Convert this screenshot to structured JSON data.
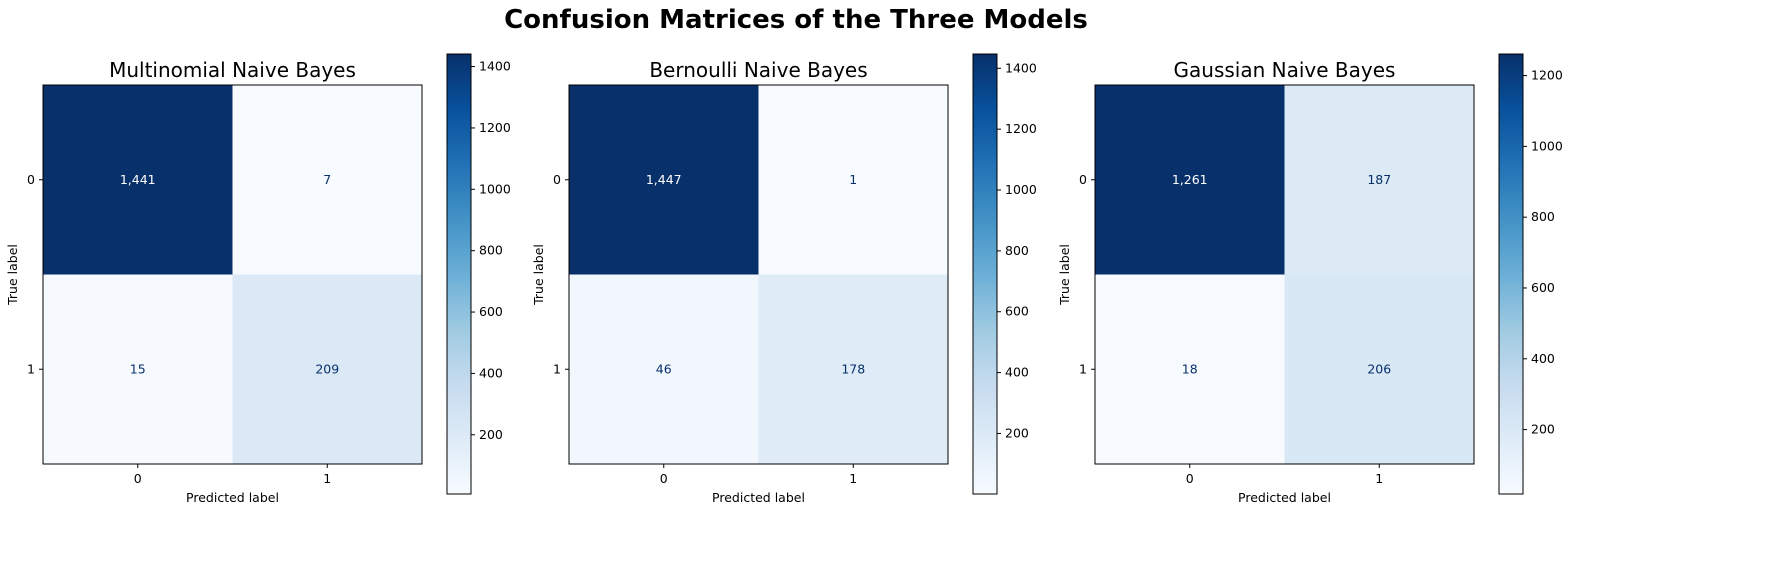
{
  "figure": {
    "title": "Confusion Matrices of the Three Models"
  },
  "chart_data": [
    {
      "type": "heatmap",
      "title": "Multinomial Naive Bayes",
      "xlabel": "Predicted label",
      "ylabel": "True label",
      "x_tick_labels": [
        "0",
        "1"
      ],
      "y_tick_labels": [
        "0",
        "1"
      ],
      "matrix": [
        [
          1441,
          7
        ],
        [
          15,
          209
        ]
      ],
      "cell_labels": [
        [
          "1,441",
          "7"
        ],
        [
          "15",
          "209"
        ]
      ],
      "colormap": "Blues",
      "colorbar": {
        "range": [
          7,
          1441
        ],
        "ticks": [
          200,
          400,
          600,
          800,
          1000,
          1200,
          1400
        ]
      }
    },
    {
      "type": "heatmap",
      "title": "Bernoulli Naive Bayes",
      "xlabel": "Predicted label",
      "ylabel": "True label",
      "x_tick_labels": [
        "0",
        "1"
      ],
      "y_tick_labels": [
        "0",
        "1"
      ],
      "matrix": [
        [
          1447,
          1
        ],
        [
          46,
          178
        ]
      ],
      "cell_labels": [
        [
          "1,447",
          "1"
        ],
        [
          "46",
          "178"
        ]
      ],
      "colormap": "Blues",
      "colorbar": {
        "range": [
          1,
          1447
        ],
        "ticks": [
          200,
          400,
          600,
          800,
          1000,
          1200,
          1400
        ]
      }
    },
    {
      "type": "heatmap",
      "title": "Gaussian Naive Bayes",
      "xlabel": "Predicted label",
      "ylabel": "True label",
      "x_tick_labels": [
        "0",
        "1"
      ],
      "y_tick_labels": [
        "0",
        "1"
      ],
      "matrix": [
        [
          1261,
          187
        ],
        [
          18,
          206
        ]
      ],
      "cell_labels": [
        [
          "1,261",
          "187"
        ],
        [
          "18",
          "206"
        ]
      ],
      "colormap": "Blues",
      "colorbar": {
        "range": [
          18,
          1261
        ],
        "ticks": [
          200,
          400,
          600,
          800,
          1000,
          1200
        ]
      }
    }
  ],
  "colors": {
    "cmap_stops": [
      "#f7fbff",
      "#deebf7",
      "#c6dbef",
      "#9ecae1",
      "#6baed6",
      "#4292c6",
      "#2171b5",
      "#08519c",
      "#08306b"
    ],
    "text_dark_cell": "#ffffff",
    "text_light_cell": "#08306b"
  }
}
